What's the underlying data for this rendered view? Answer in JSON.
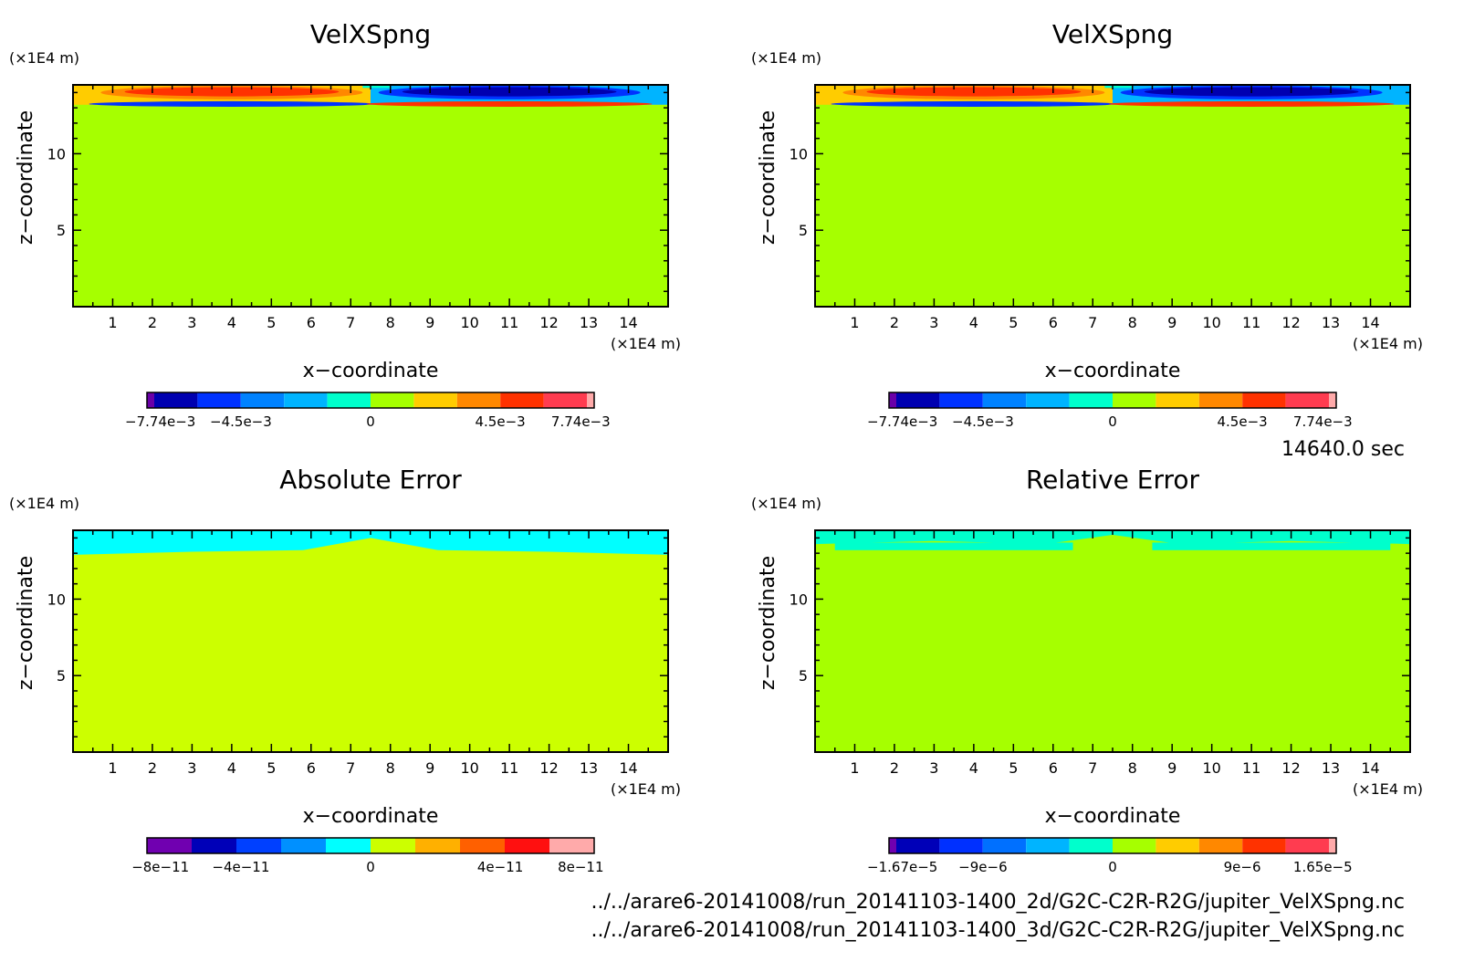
{
  "time_label": "14640.0 sec",
  "file_paths": [
    "../../arare6-20141008/run_20141103-1400_2d/G2C-C2R-R2G/jupiter_VelXSpng.nc",
    "../../arare6-20141008/run_20141103-1400_3d/G2C-C2R-R2G/jupiter_VelXSpng.nc"
  ],
  "chart_data": [
    {
      "type": "heatmap",
      "title": "VelXSpng",
      "xlabel": "x−coordinate",
      "ylabel": "z−coordinate",
      "x_unit": "(×1E4 m)",
      "y_unit": "(×1E4 m)",
      "xlim": [
        0,
        15
      ],
      "ylim": [
        0,
        14.5
      ],
      "xticks": [
        "1",
        "2",
        "3",
        "4",
        "5",
        "6",
        "7",
        "8",
        "9",
        "10",
        "11",
        "12",
        "13",
        "14"
      ],
      "yticks": [
        "5",
        "10"
      ],
      "background": "#a6ff00",
      "colorbar": {
        "colors": [
          "#6a00a8",
          "#0000b0",
          "#0032ff",
          "#0082ff",
          "#00b4ff",
          "#00ffcc",
          "#a6ff00",
          "#ffcc00",
          "#ff8800",
          "#ff3200",
          "#ff3c50",
          "#ffaaaa"
        ],
        "labels": [
          "−7.74e−3",
          "−4.5e−3",
          "0",
          "4.5e−3",
          "7.74e−3"
        ]
      },
      "features": [
        {
          "shape": "band",
          "z": [
            13.2,
            14.5
          ],
          "x": [
            0,
            15
          ],
          "color": "#ffcc00"
        },
        {
          "shape": "band",
          "z": [
            13.2,
            14.5
          ],
          "x": [
            7.5,
            15
          ],
          "color": "#00b4ff"
        },
        {
          "shape": "blob",
          "cx": 4,
          "cz": 14,
          "rx": 3.3,
          "rz": 0.45,
          "color": "#ff8800"
        },
        {
          "shape": "blob",
          "cx": 4,
          "cz": 14.05,
          "rx": 2.7,
          "rz": 0.3,
          "color": "#ff3200"
        },
        {
          "shape": "blob",
          "cx": 11,
          "cz": 14,
          "rx": 3.3,
          "rz": 0.45,
          "color": "#0032ff"
        },
        {
          "shape": "blob",
          "cx": 11,
          "cz": 14.05,
          "rx": 2.7,
          "rz": 0.3,
          "color": "#0000b0"
        },
        {
          "shape": "blob",
          "cx": 4,
          "cz": 13.25,
          "rx": 3.6,
          "rz": 0.18,
          "color": "#0032ff"
        },
        {
          "shape": "blob",
          "cx": 11,
          "cz": 13.25,
          "rx": 3.6,
          "rz": 0.18,
          "color": "#ff3200"
        },
        {
          "shape": "band",
          "z": [
            14.3,
            14.5
          ],
          "x": [
            7.3,
            8
          ],
          "color": "#00ffcc"
        }
      ]
    },
    {
      "type": "heatmap",
      "title": "VelXSpng",
      "xlabel": "x−coordinate",
      "ylabel": "z−coordinate",
      "x_unit": "(×1E4 m)",
      "y_unit": "(×1E4 m)",
      "xlim": [
        0,
        15
      ],
      "ylim": [
        0,
        14.5
      ],
      "xticks": [
        "1",
        "2",
        "3",
        "4",
        "5",
        "6",
        "7",
        "8",
        "9",
        "10",
        "11",
        "12",
        "13",
        "14"
      ],
      "yticks": [
        "5",
        "10"
      ],
      "background": "#a6ff00",
      "colorbar": {
        "colors": [
          "#6a00a8",
          "#0000b0",
          "#0032ff",
          "#0082ff",
          "#00b4ff",
          "#00ffcc",
          "#a6ff00",
          "#ffcc00",
          "#ff8800",
          "#ff3200",
          "#ff3c50",
          "#ffaaaa"
        ],
        "labels": [
          "−7.74e−3",
          "−4.5e−3",
          "0",
          "4.5e−3",
          "7.74e−3"
        ]
      },
      "features": [
        {
          "shape": "band",
          "z": [
            13.2,
            14.5
          ],
          "x": [
            0,
            15
          ],
          "color": "#ffcc00"
        },
        {
          "shape": "band",
          "z": [
            13.2,
            14.5
          ],
          "x": [
            7.5,
            15
          ],
          "color": "#00b4ff"
        },
        {
          "shape": "blob",
          "cx": 4,
          "cz": 14,
          "rx": 3.3,
          "rz": 0.45,
          "color": "#ff8800"
        },
        {
          "shape": "blob",
          "cx": 4,
          "cz": 14.05,
          "rx": 2.7,
          "rz": 0.3,
          "color": "#ff3200"
        },
        {
          "shape": "blob",
          "cx": 11,
          "cz": 14,
          "rx": 3.3,
          "rz": 0.45,
          "color": "#0032ff"
        },
        {
          "shape": "blob",
          "cx": 11,
          "cz": 14.05,
          "rx": 2.7,
          "rz": 0.3,
          "color": "#0000b0"
        },
        {
          "shape": "blob",
          "cx": 4,
          "cz": 13.25,
          "rx": 3.6,
          "rz": 0.18,
          "color": "#0032ff"
        },
        {
          "shape": "blob",
          "cx": 11,
          "cz": 13.25,
          "rx": 3.6,
          "rz": 0.18,
          "color": "#ff3200"
        },
        {
          "shape": "band",
          "z": [
            14.3,
            14.5
          ],
          "x": [
            7.3,
            8
          ],
          "color": "#00ffcc"
        }
      ]
    },
    {
      "type": "heatmap",
      "title": "Absolute Error",
      "xlabel": "x−coordinate",
      "ylabel": "z−coordinate",
      "x_unit": "(×1E4 m)",
      "y_unit": "(×1E4 m)",
      "xlim": [
        0,
        15
      ],
      "ylim": [
        0,
        14.5
      ],
      "xticks": [
        "1",
        "2",
        "3",
        "4",
        "5",
        "6",
        "7",
        "8",
        "9",
        "10",
        "11",
        "12",
        "13",
        "14"
      ],
      "yticks": [
        "5",
        "10"
      ],
      "background": "#ccff00",
      "colorbar": {
        "colors": [
          "#7000b0",
          "#0000b8",
          "#0040ff",
          "#0090ff",
          "#00ffff",
          "#ccff00",
          "#ffb000",
          "#ff6000",
          "#ff1010",
          "#ffaaaa"
        ],
        "labels": [
          "−8e−11",
          "−4e−11",
          "0",
          "4e−11",
          "8e−11"
        ]
      },
      "features": [
        {
          "shape": "poly",
          "color": "#00ffff",
          "pts": [
            [
              0,
              14.5
            ],
            [
              15,
              14.5
            ],
            [
              15,
              12.9
            ],
            [
              12,
              13.1
            ],
            [
              9.2,
              13.2
            ],
            [
              7.5,
              14.0
            ],
            [
              5.8,
              13.2
            ],
            [
              3,
              13.1
            ],
            [
              0,
              12.9
            ]
          ]
        }
      ]
    },
    {
      "type": "heatmap",
      "title": "Relative Error",
      "xlabel": "x−coordinate",
      "ylabel": "z−coordinate",
      "x_unit": "(×1E4 m)",
      "y_unit": "(×1E4 m)",
      "xlim": [
        0,
        15
      ],
      "ylim": [
        0,
        14.5
      ],
      "xticks": [
        "1",
        "2",
        "3",
        "4",
        "5",
        "6",
        "7",
        "8",
        "9",
        "10",
        "11",
        "12",
        "13",
        "14"
      ],
      "yticks": [
        "5",
        "10"
      ],
      "background": "#a6ff00",
      "colorbar": {
        "colors": [
          "#7000b0",
          "#0000b8",
          "#0030ff",
          "#0070ff",
          "#00b4ff",
          "#00ffcc",
          "#a6ff00",
          "#ffcc00",
          "#ff8800",
          "#ff3200",
          "#ff3c50",
          "#ffaaaa"
        ],
        "labels": [
          "−1.67e−5",
          "−9e−6",
          "0",
          "9e−6",
          "1.65e−5"
        ]
      },
      "features": [
        {
          "shape": "poly",
          "color": "#00ffcc",
          "pts": [
            [
              0,
              14.5
            ],
            [
              15,
              14.5
            ],
            [
              15,
              13.6
            ],
            [
              12,
              13.8
            ],
            [
              9.2,
              13.6
            ],
            [
              7.5,
              14.2
            ],
            [
              5.8,
              13.6
            ],
            [
              3,
              13.8
            ],
            [
              0,
              13.6
            ]
          ]
        },
        {
          "shape": "band",
          "z": [
            13.2,
            13.7
          ],
          "x": [
            0.5,
            6.5
          ],
          "color": "#00ffcc"
        },
        {
          "shape": "band",
          "z": [
            13.2,
            13.7
          ],
          "x": [
            8.5,
            14.5
          ],
          "color": "#00ffcc"
        }
      ]
    }
  ]
}
